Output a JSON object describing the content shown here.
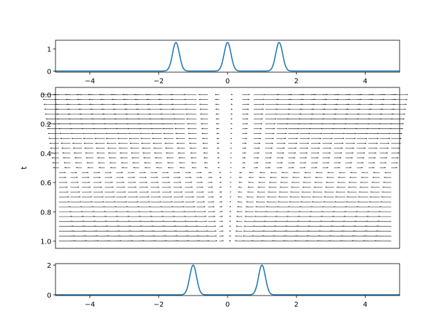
{
  "colors": {
    "line": "#1f77b4",
    "arrow": "#000000",
    "axis": "#000000",
    "background": "#ffffff"
  },
  "chart_data": [
    {
      "type": "line",
      "panel": "top",
      "description_of_shape": "three Gaussian peaks of height ~1.3",
      "title": "",
      "xlabel": "",
      "ylabel": "",
      "xlim": [
        -5,
        5
      ],
      "ylim": [
        -0.05,
        1.4
      ],
      "xticks": [
        -4,
        -2,
        0,
        2,
        4
      ],
      "xtick_labels": [
        "−4",
        "−2",
        "0",
        "2",
        "4"
      ],
      "yticks": [
        0,
        1
      ],
      "ytick_labels": [
        "0",
        "1"
      ],
      "peaks": [
        {
          "center": -1.5,
          "height": 1.3,
          "width": 0.1
        },
        {
          "center": 0.0,
          "height": 1.3,
          "width": 0.1
        },
        {
          "center": 1.5,
          "height": 1.3,
          "width": 0.1
        }
      ]
    },
    {
      "type": "quiver",
      "panel": "middle",
      "title": "",
      "xlabel": "",
      "ylabel": "t",
      "xlim": [
        -5,
        5
      ],
      "ylim": [
        1.05,
        -0.05
      ],
      "y_inverted": true,
      "yticks": [
        0.0,
        0.2,
        0.4,
        0.6,
        0.8,
        1.0
      ],
      "ytick_labels": [
        "0.0",
        "0.2",
        "0.4",
        "0.6",
        "0.8",
        "1.0"
      ],
      "x_tick_labels_shown": false,
      "field": "horizontal velocity arrows, pointing outward from x=0 at small t (spreading), inward at large t (converging)",
      "grid_x_start": -4.9,
      "grid_x_step": 0.333,
      "grid_x_count": 30,
      "grid_t_start": 0.0,
      "grid_t_step": 0.0333,
      "grid_t_count": 31
    },
    {
      "type": "line",
      "panel": "bottom",
      "title": "",
      "xlabel": "",
      "ylabel": "",
      "xlim": [
        -5,
        5
      ],
      "ylim": [
        -0.05,
        2.1
      ],
      "xticks": [
        -4,
        -2,
        0,
        2,
        4
      ],
      "xtick_labels": [
        "−4",
        "−2",
        "0",
        "2",
        "4"
      ],
      "yticks": [
        0,
        2
      ],
      "ytick_labels": [
        "0",
        "2"
      ],
      "peaks": [
        {
          "center": -1.0,
          "height": 2.0,
          "width": 0.1
        },
        {
          "center": 1.0,
          "height": 2.0,
          "width": 0.1
        }
      ]
    }
  ]
}
